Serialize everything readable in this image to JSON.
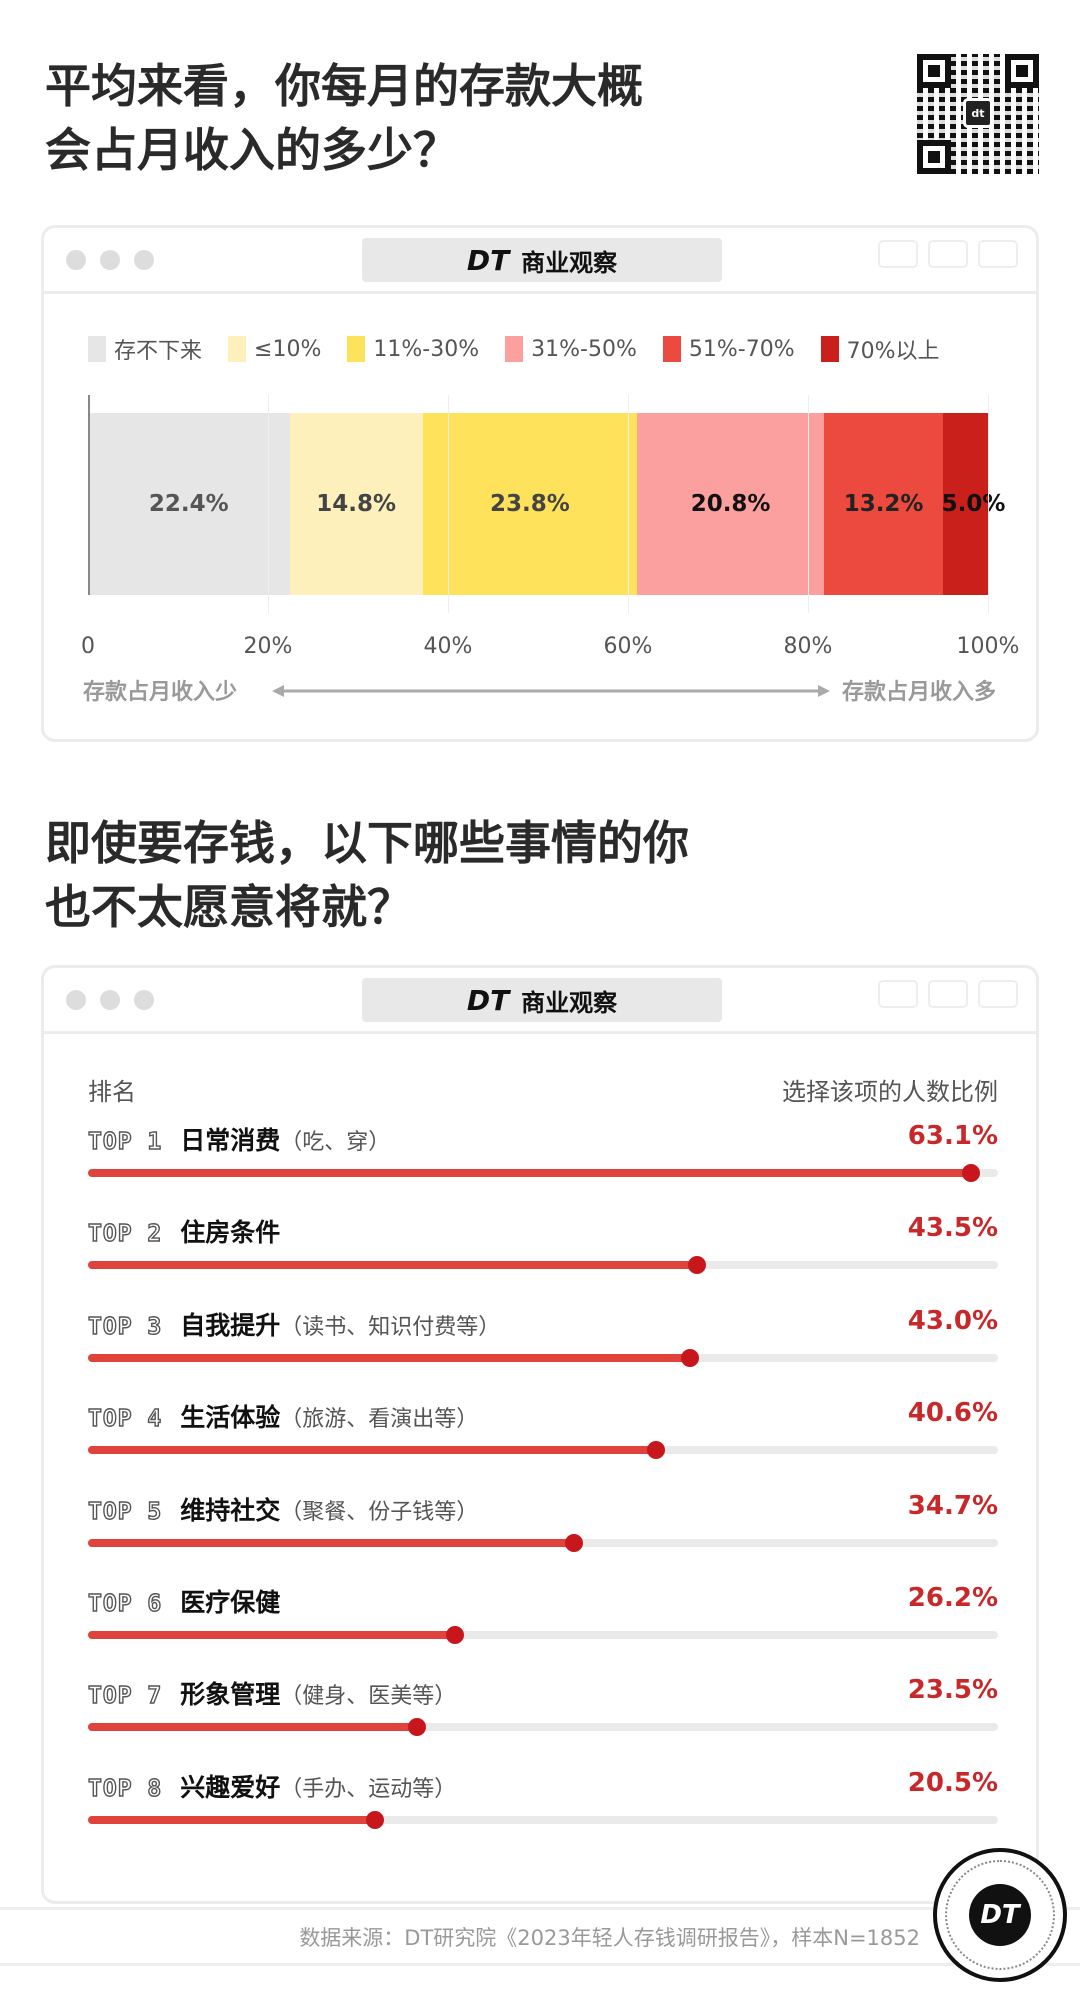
{
  "brand": {
    "dt": "DT",
    "name": "商业观察",
    "qr_center": "dt"
  },
  "section1": {
    "title_line1": "平均来看，你每月的存款大概",
    "title_line2": "会占月收入的多少？"
  },
  "chart_data": [
    {
      "type": "bar",
      "orientation": "horizontal-stacked",
      "categories": [
        "存不下来",
        "≤10%",
        "11%-30%",
        "31%-50%",
        "51%-70%",
        "70%以上"
      ],
      "values": [
        22.4,
        14.8,
        23.8,
        20.8,
        13.2,
        5.0
      ],
      "labels": [
        "22.4%",
        "14.8%",
        "23.8%",
        "20.8%",
        "13.2%",
        "5.0%"
      ],
      "colors": [
        "#e6e6e6",
        "#fdf0bb",
        "#fee25c",
        "#fba09e",
        "#ec4a3e",
        "#c9201c"
      ],
      "label_colors": [
        "#555555",
        "#444444",
        "#444444",
        "#111111",
        "#222222",
        "#111111"
      ],
      "xlim": [
        0,
        100
      ],
      "xticks": [
        "0",
        "20%",
        "40%",
        "60%",
        "80%",
        "100%"
      ],
      "legend": "top",
      "grid": true,
      "arrow_left": "存款占月收入少",
      "arrow_right": "存款占月收入多"
    },
    {
      "type": "bar",
      "orientation": "horizontal-lollipop",
      "title_line1": "即使要存钱，以下哪些事情的你",
      "title_line2": "也不太愿意将就？",
      "header_left": "排名",
      "header_right": "选择该项的人数比例",
      "xlim": [
        0,
        65
      ],
      "items": [
        {
          "rank": "TOP 1",
          "name": "日常消费",
          "note": "（吃、穿）",
          "value": 63.1,
          "label": "63.1%"
        },
        {
          "rank": "TOP 2",
          "name": "住房条件",
          "note": "",
          "value": 43.5,
          "label": "43.5%"
        },
        {
          "rank": "TOP 3",
          "name": "自我提升",
          "note": "（读书、知识付费等）",
          "value": 43.0,
          "label": "43.0%"
        },
        {
          "rank": "TOP 4",
          "name": "生活体验",
          "note": "（旅游、看演出等）",
          "value": 40.6,
          "label": "40.6%"
        },
        {
          "rank": "TOP 5",
          "name": "维持社交",
          "note": "（聚餐、份子钱等）",
          "value": 34.7,
          "label": "34.7%"
        },
        {
          "rank": "TOP 6",
          "name": "医疗保健",
          "note": "",
          "value": 26.2,
          "label": "26.2%"
        },
        {
          "rank": "TOP 7",
          "name": "形象管理",
          "note": "（健身、医美等）",
          "value": 23.5,
          "label": "23.5%"
        },
        {
          "rank": "TOP 8",
          "name": "兴趣爱好",
          "note": "（手办、运动等）",
          "value": 20.5,
          "label": "20.5%"
        }
      ],
      "bar_color": "#e0433b",
      "dot_color": "#c8161d",
      "value_color": "#c8282a"
    }
  ],
  "footer": {
    "source": "数据来源：DT研究院《2023年轻人存钱调研报告》，样本N=1852"
  }
}
